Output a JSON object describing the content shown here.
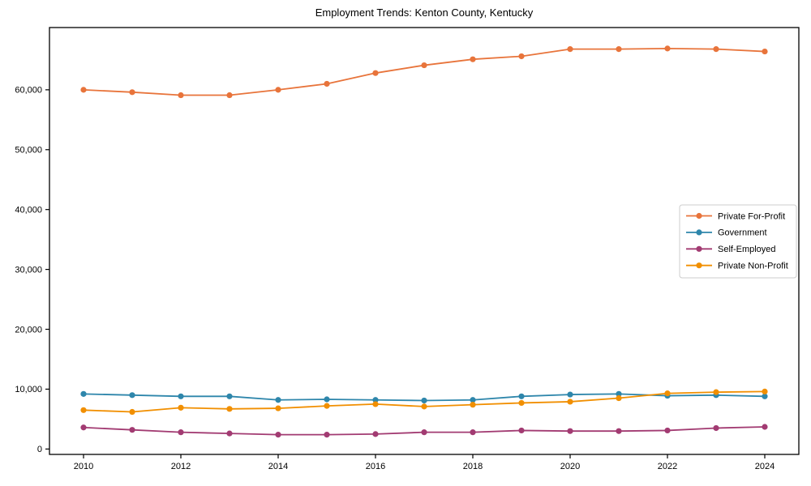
{
  "chart_data": {
    "type": "line",
    "title": "Employment Trends: Kenton County, Kentucky",
    "xlabel": "",
    "ylabel": "",
    "x": [
      2010,
      2011,
      2012,
      2013,
      2014,
      2015,
      2016,
      2017,
      2018,
      2019,
      2020,
      2021,
      2022,
      2023,
      2024
    ],
    "series": [
      {
        "name": "Private For-Profit",
        "color": "#E8743B",
        "values": [
          60000,
          59600,
          59100,
          59100,
          60000,
          61000,
          62800,
          64100,
          65100,
          65600,
          66800,
          66800,
          66900,
          66800,
          66400
        ]
      },
      {
        "name": "Government",
        "color": "#2E86AB",
        "values": [
          9200,
          9000,
          8800,
          8800,
          8200,
          8300,
          8200,
          8100,
          8200,
          8800,
          9100,
          9200,
          8900,
          9000,
          8800
        ]
      },
      {
        "name": "Self-Employed",
        "color": "#A23B72",
        "values": [
          3600,
          3200,
          2800,
          2600,
          2400,
          2400,
          2500,
          2800,
          2800,
          3100,
          3000,
          3000,
          3100,
          3500,
          3700
        ]
      },
      {
        "name": "Private Non-Profit",
        "color": "#F18F01",
        "values": [
          6500,
          6200,
          6900,
          6700,
          6800,
          7200,
          7500,
          7100,
          7400,
          7700,
          7900,
          8500,
          9300,
          9500,
          9600
        ]
      }
    ],
    "xticks": {
      "values": [
        2010,
        2012,
        2014,
        2016,
        2018,
        2020,
        2022,
        2024
      ],
      "labels": [
        "2010",
        "2012",
        "2014",
        "2016",
        "2018",
        "2020",
        "2022",
        "2024"
      ]
    },
    "yticks": {
      "values": [
        0,
        10000,
        20000,
        30000,
        40000,
        50000,
        60000
      ],
      "labels": [
        "0",
        "10,000",
        "20,000",
        "30,000",
        "40,000",
        "50,000",
        "60,000"
      ]
    },
    "xlim": [
      2009.3,
      2024.7
    ],
    "ylim": [
      -900,
      70400
    ],
    "grid": false,
    "plot_background": "#ffffff",
    "spine_color": "#000000",
    "legend": {
      "position": "center-right",
      "entries": [
        "Private For-Profit",
        "Government",
        "Self-Employed",
        "Private Non-Profit"
      ]
    }
  }
}
